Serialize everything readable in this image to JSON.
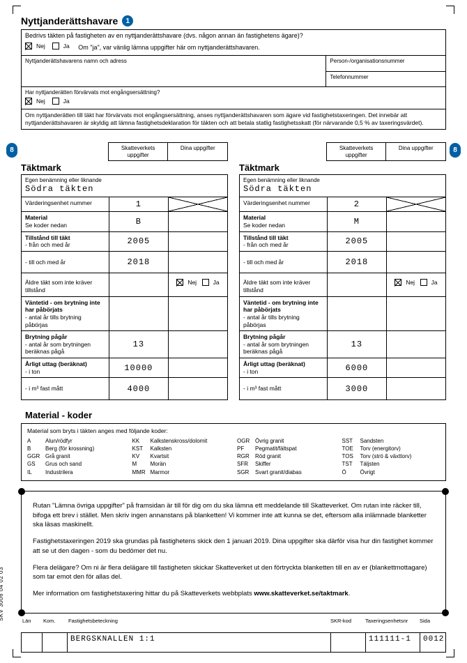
{
  "section1": {
    "title": "Nyttjanderättshavare",
    "q1": "Bedrivs täkten på fastigheten av en nyttjanderättshavare (dvs. någon annan än fastighetens ägare)?",
    "nej": "Nej",
    "ja": "Ja",
    "q1_hint": "Om \"ja\", var vänlig lämna uppgifter här om nyttjanderättshavaren.",
    "name_label": "Nyttjanderättshavarens namn och adress",
    "orgnr_label": "Person-/organisationsnummer",
    "tel_label": "Telefonnummer",
    "q2": "Har nyttjanderätten förvärvats mot engångsersättning?",
    "note": "Om nyttjanderätten till täkt har förvärvats mot engångsersättning, anses nyttjanderättshavaren som ägare vid fastighetstaxeringen. Det innebär att nyttjanderättshavaren är skyldig att lämna fastighetsdeklaration för täkten och att betala statlig fastighetsskatt (för närvarande 0,5 % av taxeringsvärdet)."
  },
  "headers": {
    "skv": "Skatteverkets uppgifter",
    "dina": "Dina uppgifter"
  },
  "takt_common": {
    "title": "Täktmark",
    "r1": "Egen benämning eller liknande",
    "r2": "Värderingsenhet nummer",
    "r3a": "Material",
    "r3b": "Se koder nedan",
    "r4a": "Tillstånd till täkt",
    "r4b": "- från och med år",
    "r5": "- till och med år",
    "r6": "Äldre täkt som inte kräver tillstånd",
    "r7a": "Väntetid - om brytning inte har påbörjats",
    "r7b": "- antal år tills brytning påbörjas",
    "r8a": "Brytning pågår",
    "r8b": "- antal år som brytningen beräknas pågå",
    "r9a": "Årligt uttag (beräknat)",
    "r9b": "- i ton",
    "r10": "- i m³ fast mått",
    "nej": "Nej",
    "ja": "Ja"
  },
  "takt": [
    {
      "name": "Södra täkten",
      "unit_no": "1",
      "material": "B",
      "from_year": "2005",
      "to_year": "2018",
      "old_takt_nej": true,
      "brytning_years": "13",
      "annual_tons": "10000",
      "annual_m3": "4000"
    },
    {
      "name": "Södra täkten",
      "unit_no": "2",
      "material": "M",
      "from_year": "2005",
      "to_year": "2018",
      "old_takt_nej": true,
      "brytning_years": "13",
      "annual_tons": "6000",
      "annual_m3": "3000"
    }
  ],
  "materials": {
    "title": "Material - koder",
    "intro": "Material som bryts i täkten anges med följande koder:",
    "c1": [
      [
        "A",
        "Alun/rödfyr"
      ],
      [
        "B",
        "Berg (för krossning)"
      ],
      [
        "GGR",
        "Grå granit"
      ],
      [
        "GS",
        "Grus och sand"
      ],
      [
        "IL",
        "Industrilera"
      ]
    ],
    "c2": [
      [
        "KK",
        "Kalkstenskross/dolomit"
      ],
      [
        "KST",
        "Kalksten"
      ],
      [
        "KV",
        "Kvartsit"
      ],
      [
        "M",
        "Morän"
      ],
      [
        "MMR",
        "Marmor"
      ]
    ],
    "c3": [
      [
        "OGR",
        "Övrig granit"
      ],
      [
        "PF",
        "Pegmatit/fältspat"
      ],
      [
        "RGR",
        "Röd granit"
      ],
      [
        "SFR",
        "Skiffer"
      ],
      [
        "SGR",
        "Svart granit/diabas"
      ]
    ],
    "c4": [
      [
        "SST",
        "Sandsten"
      ],
      [
        "TOE",
        "Torv (energitorv)"
      ],
      [
        "TOS",
        "Torv (strö & växttorv)"
      ],
      [
        "TST",
        "Täljsten"
      ],
      [
        "Ö",
        "Övrigt"
      ]
    ]
  },
  "info": {
    "p1": "Rutan \"Lämna övriga uppgifter\" på framsidan är till för dig om du ska lämna ett meddelande till Skatteverket. Om rutan inte räcker till, bifoga ett brev i stället. Men skriv ingen annanstans på blanketten! Vi kommer inte att kunna se det, eftersom alla inlämnade blanketter ska läsas maskinellt.",
    "p2": "Fastighetstaxeringen 2019 ska grundas på fastighetens skick den 1 januari 2019. Dina uppgifter ska därför visa hur din fastighet kommer att se ut den dagen - som du bedömer det nu.",
    "p3": "Flera delägare? Om ni är flera delägare till fastigheten skickar Skatteverket ut den förtryckta blanketten till en av er (blankettmottagare) som tar emot den för allas del.",
    "p4a": "Mer information om fastighetstaxering hittar du på Skatteverkets webbplats ",
    "p4b": "www.skatteverket.se/taktmark",
    "p4c": "."
  },
  "footer": {
    "lan": "Län",
    "kom": "Kom.",
    "fbe": "Fastighetsbeteckning",
    "skr": "SKR-kod",
    "tax": "Taxeringsenhetsnr",
    "sida": "Sida",
    "fastighet": "BERGSKNALLEN 1:1",
    "taxnr": "111111-1",
    "page": "0012"
  },
  "form_id": "SKV 3006 04 02 03"
}
